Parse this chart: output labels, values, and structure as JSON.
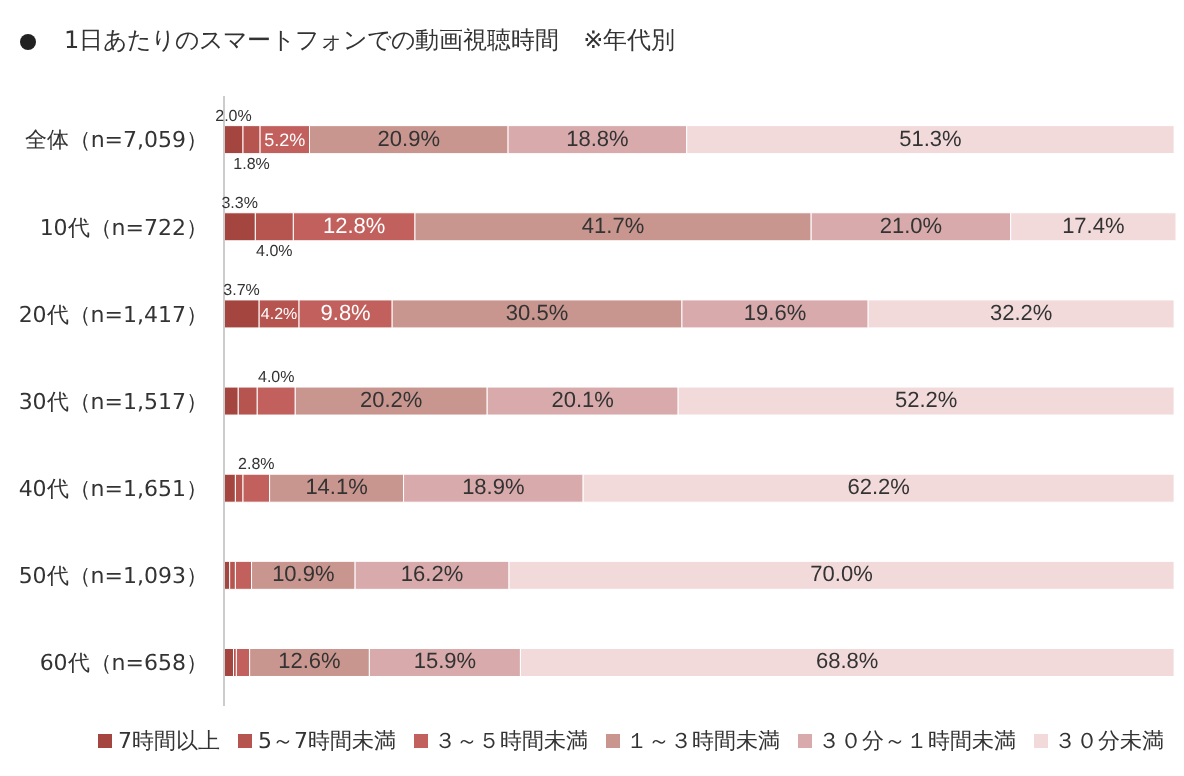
{
  "chart_data": {
    "type": "bar",
    "orientation": "horizontal",
    "stacked": true,
    "title": "1日あたりのスマートフォンでの動画視聴時間　※年代別",
    "categories": [
      "全体（n=7,059）",
      "10代（n=722）",
      "20代（n=1,417）",
      "30代（n=1,517）",
      "40代（n=1,651）",
      "50代（n=1,093）",
      "60代（n=658）"
    ],
    "series": [
      {
        "name": "7時間以上",
        "color": "#a5453f",
        "values": [
          2.0,
          3.3,
          3.7,
          1.5,
          1.2,
          0.6,
          1.0
        ],
        "value_labels": [
          "2.0%",
          "3.3%",
          "3.7%",
          null,
          null,
          null,
          null
        ]
      },
      {
        "name": "5～7時間未満",
        "color": "#b65450",
        "values": [
          1.8,
          4.0,
          4.2,
          2.0,
          0.8,
          0.6,
          0.3
        ],
        "value_labels": [
          "1.8%",
          "4.0%",
          "4.2%",
          null,
          null,
          null,
          null
        ]
      },
      {
        "name": "３～５時間未満",
        "color": "#c1605c",
        "values": [
          5.2,
          12.8,
          9.8,
          4.0,
          2.8,
          1.7,
          1.4
        ],
        "value_labels": [
          "5.2%",
          "12.8%",
          "9.8%",
          "4.0%",
          "2.8%",
          null,
          null
        ]
      },
      {
        "name": "１～３時間未満",
        "color": "#c9968f",
        "values": [
          20.9,
          41.7,
          30.5,
          20.2,
          14.1,
          10.9,
          12.6
        ],
        "value_labels": [
          "20.9%",
          "41.7%",
          "30.5%",
          "20.2%",
          "14.1%",
          "10.9%",
          "12.6%"
        ]
      },
      {
        "name": "３０分～１時間未満",
        "color": "#d8aaab",
        "values": [
          18.8,
          21.0,
          19.6,
          20.1,
          18.9,
          16.2,
          15.9
        ],
        "value_labels": [
          "18.8%",
          "21.0%",
          "19.6%",
          "20.1%",
          "18.9%",
          "16.2%",
          "15.9%"
        ]
      },
      {
        "name": "３０分未満",
        "color": "#f2dadb",
        "values": [
          51.3,
          17.4,
          32.2,
          52.2,
          62.2,
          70.0,
          68.8
        ],
        "value_labels": [
          "51.3%",
          "17.4%",
          "32.2%",
          "52.2%",
          "62.2%",
          "70.0%",
          "68.8%"
        ]
      }
    ],
    "tick_labels": "y",
    "legend": "bottom"
  }
}
